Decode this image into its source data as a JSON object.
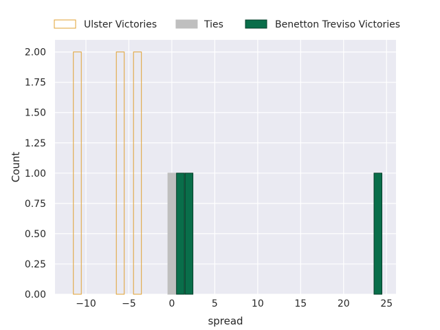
{
  "chart_data": {
    "type": "bar",
    "title": "",
    "xlabel": "spread",
    "ylabel": "Count",
    "xlim": [
      -13.6,
      26.1
    ],
    "ylim": [
      0,
      2.1
    ],
    "xticks": [
      -10,
      -5,
      0,
      5,
      10,
      15,
      20,
      25
    ],
    "xtick_labels": [
      "−10",
      "−5",
      "0",
      "5",
      "10",
      "15",
      "20",
      "25"
    ],
    "yticks": [
      0,
      0.25,
      0.5,
      0.75,
      1.0,
      1.25,
      1.5,
      1.75,
      2.0
    ],
    "ytick_labels": [
      "0.00",
      "0.25",
      "0.50",
      "0.75",
      "1.00",
      "1.25",
      "1.50",
      "1.75",
      "2.00"
    ],
    "grid": true,
    "legend_position": "top",
    "series": [
      {
        "name": "Ulster Victories",
        "fill": "none",
        "edge": "#e0a030",
        "bins": [
          {
            "x0": -11.5,
            "x1": -10.5,
            "count": 2
          },
          {
            "x0": -6.5,
            "x1": -5.5,
            "count": 2
          },
          {
            "x0": -4.5,
            "x1": -3.5,
            "count": 2
          }
        ]
      },
      {
        "name": "Ties",
        "fill": "#bfbfbf",
        "edge": "#bfbfbf",
        "bins": [
          {
            "x0": -0.5,
            "x1": 0.5,
            "count": 1
          }
        ]
      },
      {
        "name": "Benetton Treviso Victories",
        "fill": "#096e4a",
        "edge": "#063d29",
        "bins": [
          {
            "x0": 0.5,
            "x1": 1.5,
            "count": 1
          },
          {
            "x0": 1.5,
            "x1": 2.5,
            "count": 1
          },
          {
            "x0": 23.5,
            "x1": 24.5,
            "count": 1
          }
        ]
      }
    ]
  }
}
